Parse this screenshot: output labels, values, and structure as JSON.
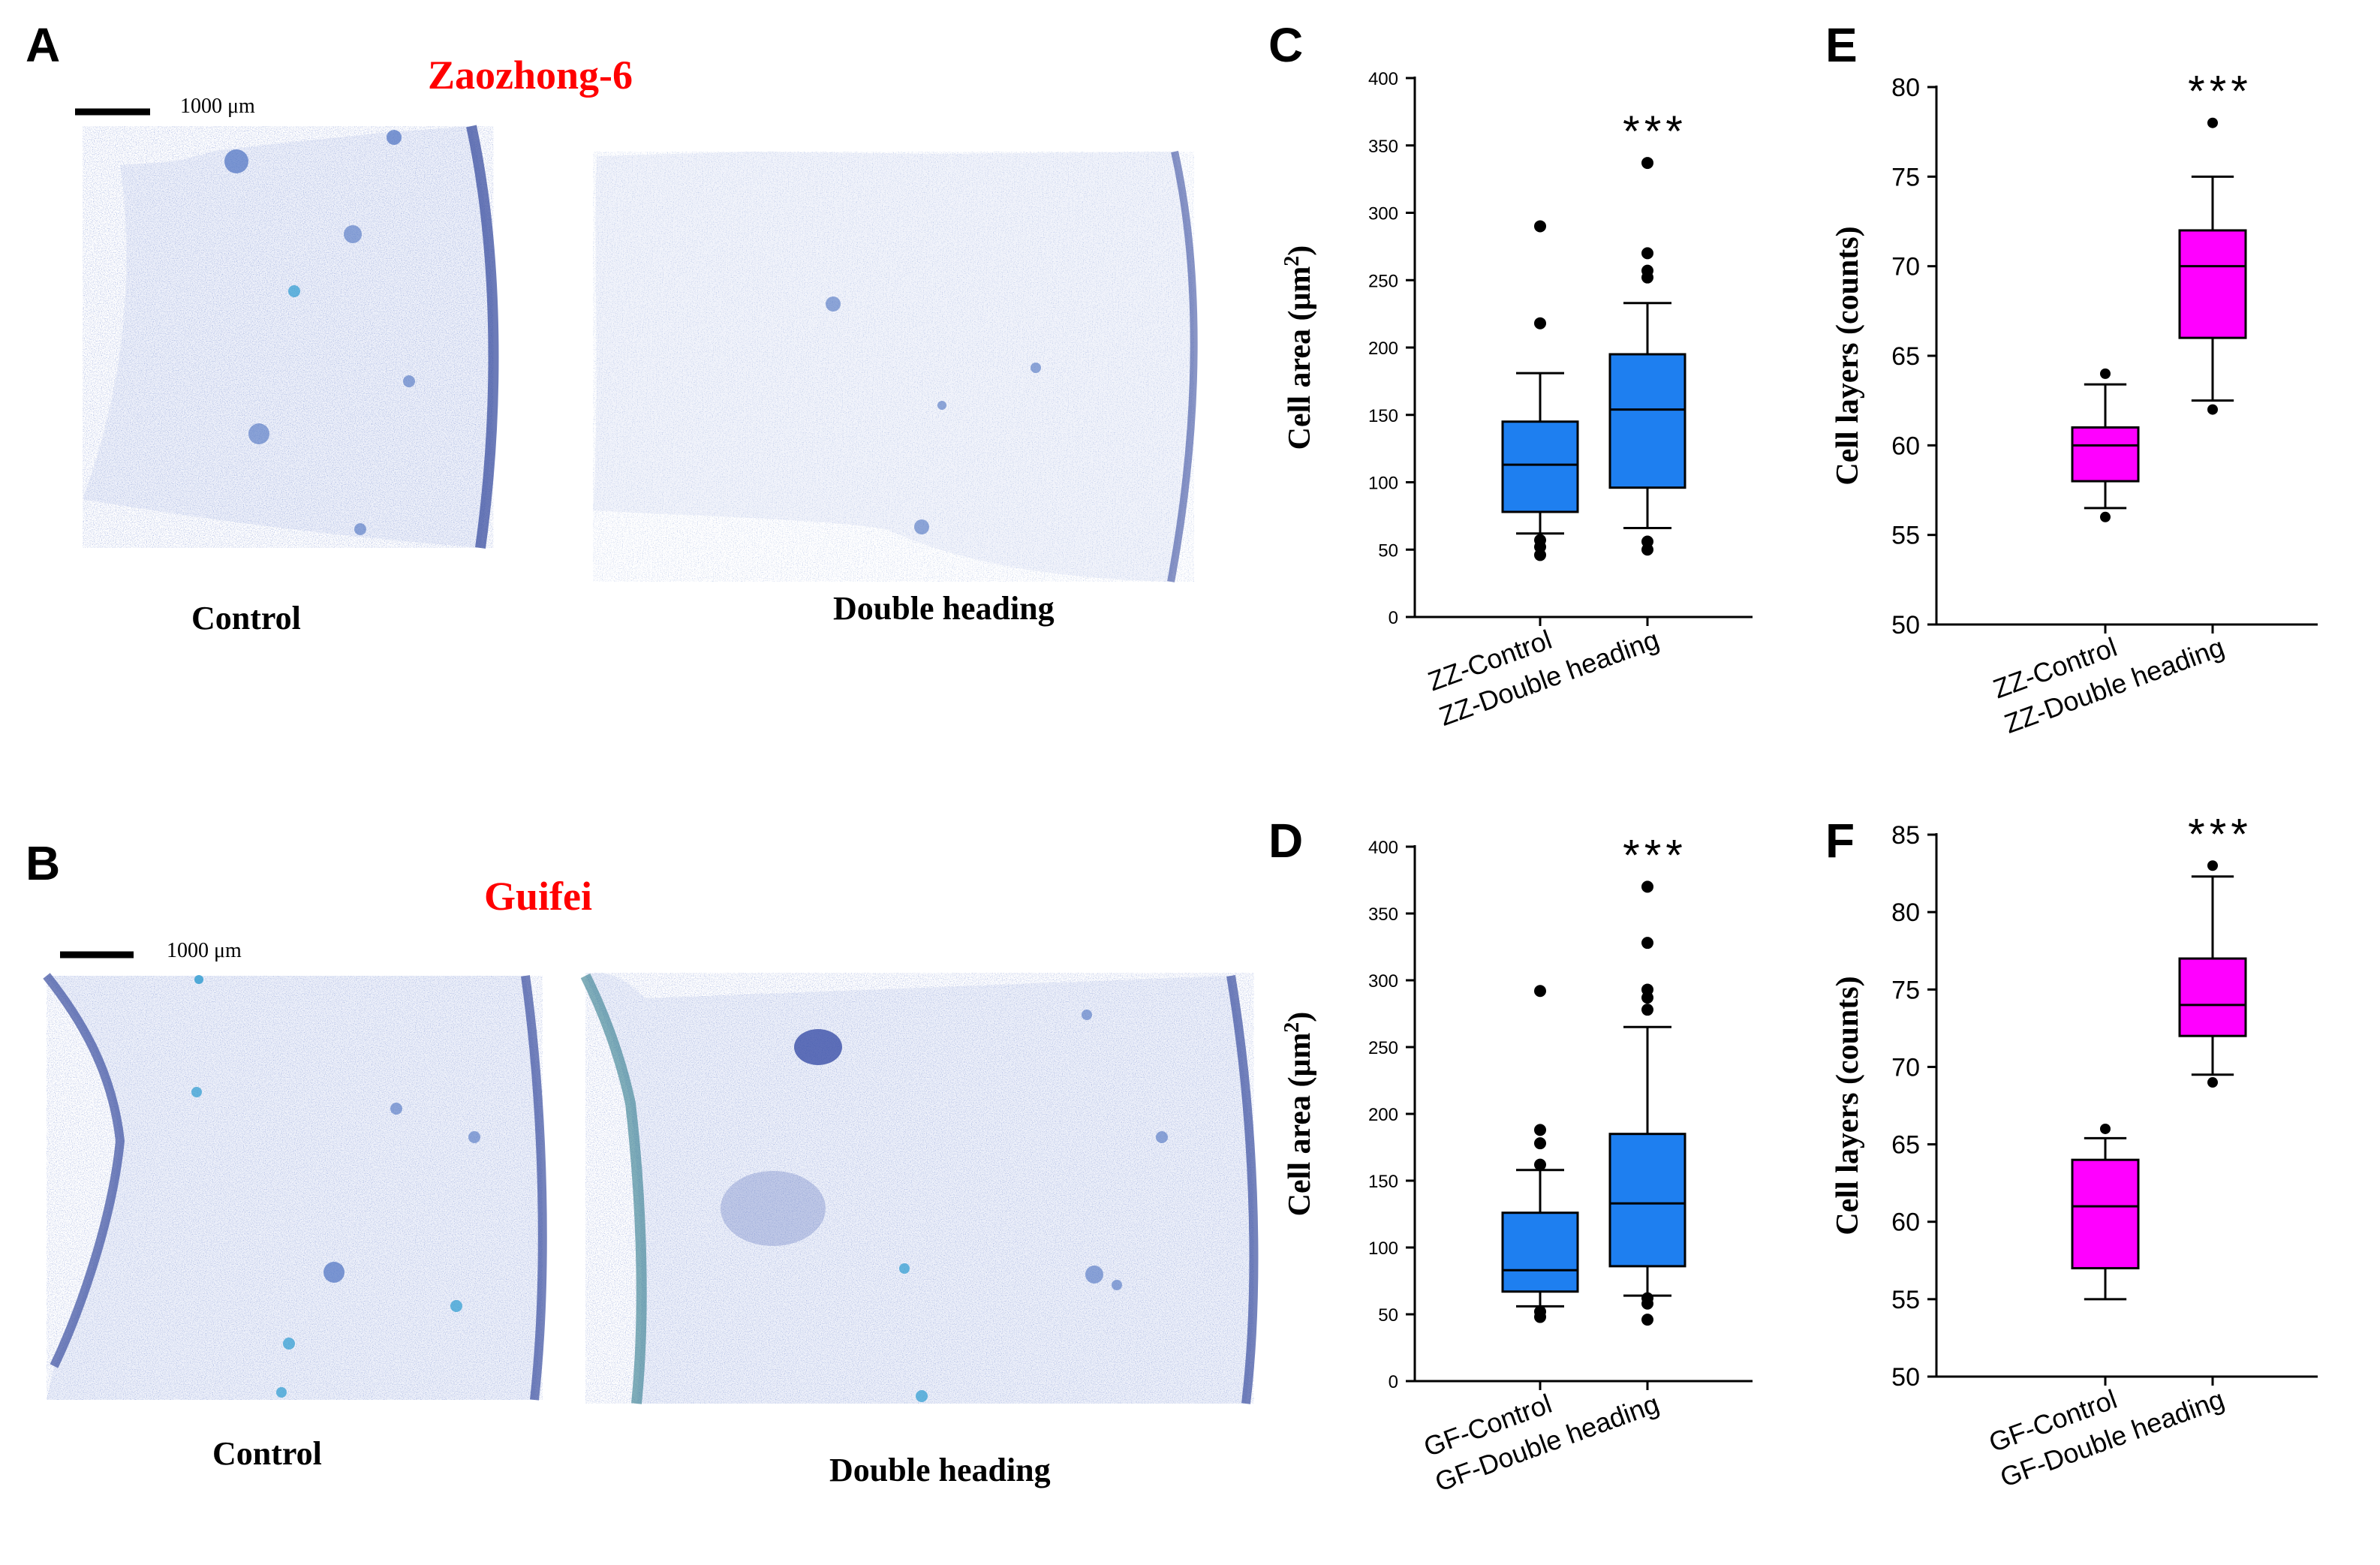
{
  "panels": {
    "A": {
      "label": "A",
      "cultivar": "Zaozhong-6",
      "scale": "1000 μm",
      "captions": [
        "Control",
        "Double heading"
      ]
    },
    "B": {
      "label": "B",
      "cultivar": "Guifei",
      "scale": "1000 μm",
      "captions": [
        "Control",
        "Double heading"
      ]
    }
  },
  "colors": {
    "blue_box": "#1e7ff0",
    "magenta_box": "#ff00ff",
    "cultivar_text": "#ff0000",
    "stain": "#4a5fb0"
  },
  "chart_data": [
    {
      "id": "C",
      "label": "C",
      "type": "box",
      "ylabel": "Cell area (μm",
      "ylabel_sup": "2",
      "ylabel_end": ")",
      "ylim": [
        0,
        400
      ],
      "yticks": [
        0,
        50,
        100,
        150,
        200,
        250,
        300,
        350,
        400
      ],
      "categories": [
        "ZZ-Control",
        "ZZ-Double heading"
      ],
      "significance": "***",
      "color": "#1e7ff0",
      "boxes": [
        {
          "whisker_low": 62,
          "q1": 78,
          "median": 113,
          "q3": 145,
          "whisker_high": 181,
          "outliers": [
            218,
            290,
            46,
            52,
            57
          ]
        },
        {
          "whisker_low": 66,
          "q1": 96,
          "median": 154,
          "q3": 195,
          "whisker_high": 233,
          "outliers": [
            252,
            257,
            270,
            337,
            50,
            56
          ]
        }
      ]
    },
    {
      "id": "D",
      "label": "D",
      "type": "box",
      "ylabel": "Cell area (μm",
      "ylabel_sup": "2",
      "ylabel_end": ")",
      "ylim": [
        0,
        400
      ],
      "yticks": [
        0,
        50,
        100,
        150,
        200,
        250,
        300,
        350,
        400
      ],
      "categories": [
        "GF-Control",
        "GF-Double heading"
      ],
      "significance": "***",
      "color": "#1e7ff0",
      "boxes": [
        {
          "whisker_low": 56,
          "q1": 67,
          "median": 83,
          "q3": 126,
          "whisker_high": 158,
          "outliers": [
            162,
            178,
            188,
            292,
            48,
            52
          ]
        },
        {
          "whisker_low": 64,
          "q1": 86,
          "median": 133,
          "q3": 185,
          "whisker_high": 265,
          "outliers": [
            278,
            287,
            293,
            328,
            370,
            46,
            58,
            62
          ]
        }
      ]
    },
    {
      "id": "E",
      "label": "E",
      "type": "box",
      "ylabel": "Cell layers (counts)",
      "ylim": [
        50,
        80
      ],
      "yticks": [
        50,
        55,
        60,
        65,
        70,
        75,
        80
      ],
      "categories": [
        "ZZ-Control",
        "ZZ-Double heading"
      ],
      "significance": "***",
      "color": "#ff00ff",
      "boxes": [
        {
          "whisker_low": 56.5,
          "q1": 58,
          "median": 60,
          "q3": 61,
          "whisker_high": 63.4,
          "outliers": [
            64,
            56
          ]
        },
        {
          "whisker_low": 62.5,
          "q1": 66,
          "median": 70,
          "q3": 72,
          "whisker_high": 75,
          "outliers": [
            78,
            62
          ]
        }
      ]
    },
    {
      "id": "F",
      "label": "F",
      "type": "box",
      "ylabel": "Cell layers (counts)",
      "ylim": [
        50,
        85
      ],
      "yticks": [
        50,
        55,
        60,
        65,
        70,
        75,
        80,
        85
      ],
      "categories": [
        "GF-Control",
        "GF-Double heading"
      ],
      "significance": "***",
      "color": "#ff00ff",
      "boxes": [
        {
          "whisker_low": 55,
          "q1": 57,
          "median": 61,
          "q3": 64,
          "whisker_high": 65.4,
          "outliers": [
            66
          ]
        },
        {
          "whisker_low": 69.5,
          "q1": 72,
          "median": 74,
          "q3": 77,
          "whisker_high": 82.3,
          "outliers": [
            83,
            69
          ]
        }
      ]
    }
  ]
}
